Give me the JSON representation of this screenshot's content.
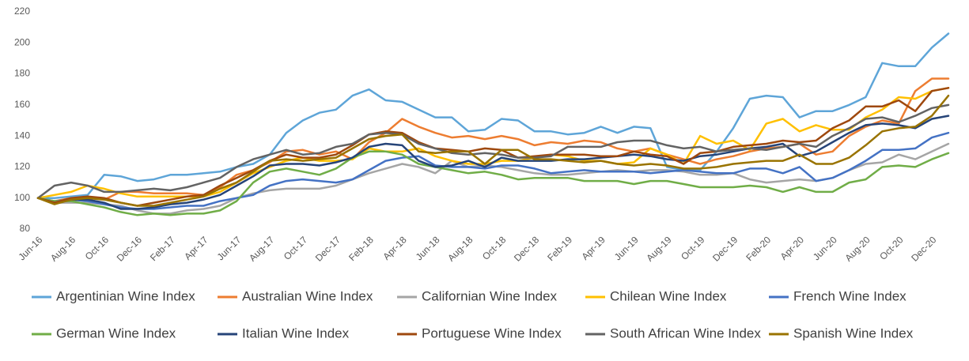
{
  "chart_data": {
    "type": "line",
    "categories": [
      "Jun-16",
      null,
      "Aug-16",
      null,
      "Oct-16",
      null,
      "Dec-16",
      null,
      "Feb-17",
      null,
      "Apr-17",
      null,
      "Jun-17",
      null,
      "Aug-17",
      null,
      "Oct-17",
      null,
      "Dec-17",
      null,
      "Feb-18",
      null,
      "Apr-18",
      null,
      "Jun-18",
      null,
      "Aug-18",
      null,
      "Oct-18",
      null,
      "Dec-18",
      null,
      "Feb-19",
      null,
      "Apr-19",
      null,
      "Jun-19",
      null,
      "Aug-19",
      null,
      "Oct-19",
      null,
      "Dec-19",
      null,
      "Feb-20",
      null,
      "Apr-20",
      null,
      "Jun-20",
      null,
      "Aug-20",
      null,
      "Oct-20",
      null,
      "Dec-20",
      null
    ],
    "ylim": [
      80,
      220
    ],
    "yticks": [
      80,
      100,
      120,
      140,
      160,
      180,
      200,
      220
    ],
    "grid": false,
    "legend": "bottom",
    "series": [
      {
        "name": "Argentinian Wine Index",
        "color": "#5ea5d8",
        "values": [
          100,
          100,
          101,
          102,
          115,
          114,
          111,
          112,
          115,
          115,
          116,
          117,
          120,
          122,
          128,
          142,
          150,
          155,
          157,
          166,
          170,
          163,
          162,
          157,
          152,
          152,
          143,
          144,
          151,
          150,
          143,
          143,
          141,
          142,
          146,
          142,
          146,
          145,
          120,
          118,
          118,
          130,
          145,
          164,
          166,
          165,
          152,
          156,
          156,
          160,
          165,
          187,
          185,
          185,
          197,
          206
        ]
      },
      {
        "name": "Australian Wine Index",
        "color": "#ed7d31",
        "values": [
          100,
          98,
          100,
          100,
          99,
          104,
          104,
          103,
          103,
          103,
          102,
          107,
          115,
          118,
          123,
          130,
          131,
          128,
          130,
          125,
          136,
          142,
          151,
          146,
          142,
          139,
          140,
          138,
          140,
          138,
          134,
          136,
          135,
          137,
          136,
          132,
          130,
          132,
          128,
          125,
          122,
          125,
          127,
          130,
          132,
          133,
          135,
          128,
          130,
          140,
          146,
          150,
          148,
          169,
          177,
          177
        ]
      },
      {
        "name": "Californian Wine Index",
        "color": "#a5a5a5",
        "values": [
          100,
          97,
          97,
          97,
          96,
          95,
          92,
          90,
          90,
          92,
          93,
          95,
          100,
          103,
          105,
          106,
          106,
          106,
          108,
          112,
          116,
          119,
          122,
          120,
          116,
          124,
          120,
          121,
          120,
          118,
          116,
          115,
          115,
          116,
          117,
          118,
          117,
          118,
          118,
          117,
          115,
          115,
          116,
          112,
          110,
          111,
          112,
          111,
          113,
          118,
          122,
          123,
          128,
          125,
          130,
          135
        ]
      },
      {
        "name": "Chilean Wine Index",
        "color": "#ffc000",
        "values": [
          100,
          102,
          104,
          108,
          106,
          103,
          101,
          101,
          101,
          101,
          101,
          104,
          110,
          116,
          120,
          124,
          126,
          124,
          124,
          125,
          132,
          130,
          130,
          132,
          127,
          124,
          122,
          122,
          124,
          124,
          126,
          128,
          127,
          124,
          124,
          122,
          123,
          132,
          128,
          122,
          140,
          135,
          137,
          131,
          148,
          151,
          143,
          147,
          144,
          144,
          152,
          157,
          165,
          164,
          169,
          171
        ]
      },
      {
        "name": "French Wine Index",
        "color": "#4472c4",
        "values": [
          100,
          98,
          99,
          98,
          96,
          94,
          93,
          93,
          94,
          95,
          95,
          98,
          100,
          102,
          108,
          111,
          112,
          111,
          110,
          112,
          118,
          124,
          126,
          127,
          121,
          120,
          120,
          119,
          121,
          121,
          119,
          116,
          117,
          118,
          117,
          117,
          117,
          116,
          117,
          118,
          117,
          116,
          116,
          119,
          119,
          116,
          120,
          111,
          113,
          118,
          124,
          131,
          131,
          132,
          139,
          142
        ]
      },
      {
        "name": "German Wine Index",
        "color": "#70ad47",
        "values": [
          100,
          98,
          98,
          96,
          94,
          91,
          89,
          90,
          89,
          90,
          90,
          92,
          98,
          110,
          117,
          119,
          117,
          115,
          119,
          126,
          130,
          130,
          128,
          122,
          120,
          118,
          116,
          117,
          115,
          112,
          113,
          113,
          113,
          111,
          111,
          111,
          109,
          111,
          111,
          109,
          107,
          107,
          107,
          108,
          107,
          104,
          107,
          104,
          104,
          110,
          112,
          120,
          121,
          120,
          125,
          129
        ]
      },
      {
        "name": "Italian Wine Index",
        "color": "#264478",
        "values": [
          100,
          97,
          99,
          99,
          97,
          93,
          93,
          94,
          96,
          97,
          99,
          102,
          108,
          114,
          121,
          122,
          122,
          121,
          123,
          126,
          133,
          135,
          134,
          124,
          120,
          121,
          124,
          120,
          126,
          124,
          124,
          124,
          125,
          125,
          126,
          127,
          128,
          127,
          125,
          124,
          127,
          128,
          130,
          132,
          133,
          135,
          127,
          130,
          136,
          142,
          147,
          148,
          147,
          145,
          151,
          153
        ]
      },
      {
        "name": "Portuguese Wine Index",
        "color": "#9e480e",
        "values": [
          100,
          97,
          100,
          101,
          100,
          97,
          95,
          97,
          99,
          101,
          102,
          108,
          113,
          118,
          124,
          128,
          126,
          126,
          128,
          134,
          141,
          143,
          142,
          136,
          132,
          131,
          130,
          132,
          131,
          126,
          127,
          128,
          128,
          128,
          127,
          127,
          130,
          128,
          127,
          122,
          129,
          130,
          133,
          134,
          135,
          137,
          136,
          137,
          145,
          150,
          159,
          159,
          163,
          156,
          169,
          171
        ]
      },
      {
        "name": "South African Wine Index",
        "color": "#636363",
        "values": [
          100,
          108,
          110,
          108,
          104,
          104,
          105,
          106,
          105,
          107,
          110,
          113,
          120,
          125,
          128,
          131,
          128,
          129,
          133,
          135,
          141,
          142,
          141,
          135,
          132,
          129,
          128,
          129,
          128,
          126,
          126,
          127,
          133,
          133,
          133,
          136,
          137,
          137,
          134,
          132,
          133,
          130,
          131,
          132,
          131,
          133,
          135,
          133,
          140,
          145,
          151,
          152,
          149,
          153,
          158,
          160
        ]
      },
      {
        "name": "Spanish Wine Index",
        "color": "#997300",
        "values": [
          100,
          96,
          99,
          100,
          99,
          97,
          95,
          95,
          97,
          99,
          101,
          106,
          110,
          117,
          124,
          125,
          124,
          125,
          126,
          132,
          138,
          140,
          141,
          130,
          129,
          130,
          130,
          122,
          131,
          131,
          125,
          125,
          124,
          123,
          124,
          122,
          121,
          122,
          121,
          119,
          119,
          120,
          122,
          123,
          124,
          124,
          128,
          122,
          122,
          126,
          134,
          143,
          145,
          146,
          153,
          166
        ]
      }
    ]
  }
}
